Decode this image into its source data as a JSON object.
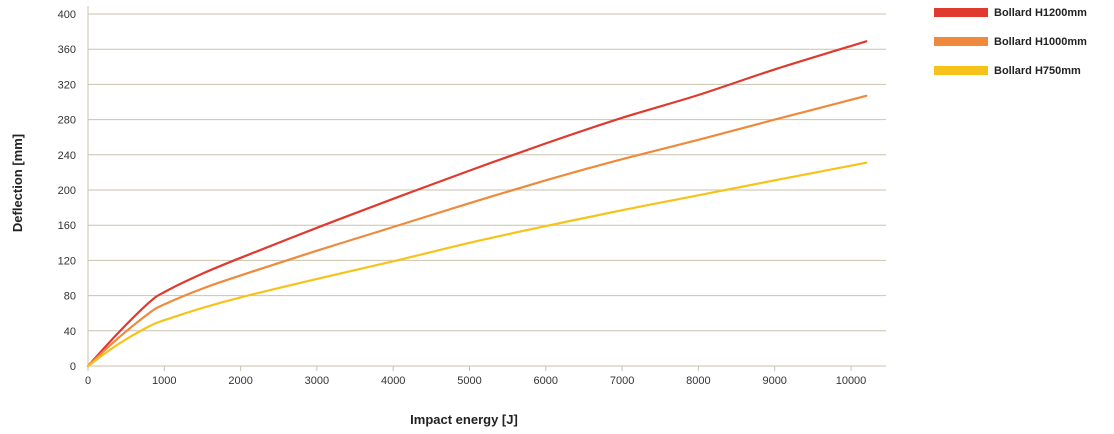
{
  "chart_data": {
    "type": "line",
    "title": "",
    "xlabel": "Impact energy [J]",
    "ylabel": "Deflection [mm]",
    "xlim": [
      0,
      10500
    ],
    "ylim": [
      0,
      400
    ],
    "xticks": [
      0,
      1000,
      2000,
      3000,
      4000,
      5000,
      6000,
      7000,
      8000,
      9000,
      10000
    ],
    "yticks": [
      0,
      40,
      80,
      120,
      160,
      200,
      240,
      280,
      320,
      360,
      400
    ],
    "grid": "horizontal",
    "legend_position": "top-right",
    "series": [
      {
        "name": "Bollard H1200mm",
        "color": "#e03a2e",
        "x": [
          0,
          400,
          800,
          1000,
          1500,
          2000,
          3000,
          4000,
          5000,
          6000,
          7000,
          8000,
          9000,
          10200
        ],
        "y": [
          0,
          38,
          72,
          84,
          105,
          123,
          157,
          190,
          222,
          253,
          282,
          308,
          337,
          369
        ]
      },
      {
        "name": "Bollard H1000mm",
        "color": "#ef8a3c",
        "x": [
          0,
          400,
          800,
          1000,
          1500,
          2000,
          3000,
          4000,
          5000,
          6000,
          7000,
          8000,
          9000,
          10200
        ],
        "y": [
          0,
          32,
          60,
          70,
          88,
          103,
          131,
          158,
          185,
          211,
          235,
          257,
          280,
          307
        ]
      },
      {
        "name": "Bollard H750mm",
        "color": "#f7c21a",
        "x": [
          0,
          400,
          800,
          1000,
          1500,
          2000,
          3000,
          4000,
          5000,
          6000,
          7000,
          8000,
          9000,
          10200
        ],
        "y": [
          0,
          25,
          45,
          52,
          66,
          78,
          99,
          119,
          140,
          159,
          177,
          194,
          211,
          231
        ]
      }
    ]
  }
}
